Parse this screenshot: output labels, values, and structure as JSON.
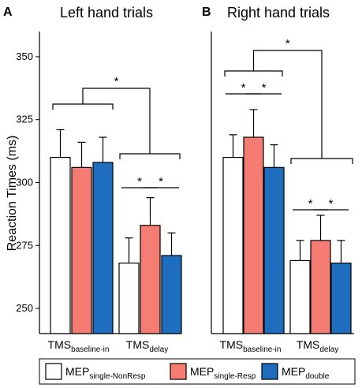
{
  "chart_data": [
    {
      "type": "bar",
      "panel_letter": "A",
      "title": "Left hand trials",
      "ylabel": "Reaction Times (ms)",
      "ylim": [
        240,
        360
      ],
      "yticks": [
        250,
        275,
        300,
        325,
        350
      ],
      "categories": [
        {
          "main": "TMS",
          "sub": "baseline-in"
        },
        {
          "main": "TMS",
          "sub": "delay"
        }
      ],
      "series": [
        {
          "name": "MEP single-NonResp",
          "values": [
            310,
            268
          ],
          "errors": [
            11,
            10
          ]
        },
        {
          "name": "MEP single-Resp",
          "values": [
            306,
            283
          ],
          "errors": [
            10,
            11
          ]
        },
        {
          "name": "MEP double",
          "values": [
            308,
            271
          ],
          "errors": [
            10,
            9
          ]
        }
      ],
      "annotations": [
        {
          "type": "pair",
          "category": 1,
          "from": 0,
          "to": 1,
          "label": "*"
        },
        {
          "type": "pair",
          "category": 1,
          "from": 1,
          "to": 2,
          "label": "*"
        },
        {
          "type": "groups",
          "label": "*"
        }
      ]
    },
    {
      "type": "bar",
      "panel_letter": "B",
      "title": "Right hand trials",
      "ylabel": "",
      "ylim": [
        240,
        360
      ],
      "yticks": [],
      "categories": [
        {
          "main": "TMS",
          "sub": "baseline-in"
        },
        {
          "main": "TMS",
          "sub": "delay"
        }
      ],
      "series": [
        {
          "name": "MEP single-NonResp",
          "values": [
            310,
            269
          ],
          "errors": [
            9,
            8
          ]
        },
        {
          "name": "MEP single-Resp",
          "values": [
            318,
            277
          ],
          "errors": [
            11,
            10
          ]
        },
        {
          "name": "MEP double",
          "values": [
            306,
            268
          ],
          "errors": [
            9,
            9
          ]
        }
      ],
      "annotations": [
        {
          "type": "pair",
          "category": 0,
          "from": 0,
          "to": 1,
          "label": "*"
        },
        {
          "type": "pair",
          "category": 0,
          "from": 1,
          "to": 2,
          "label": "*"
        },
        {
          "type": "pair",
          "category": 1,
          "from": 0,
          "to": 1,
          "label": "*"
        },
        {
          "type": "pair",
          "category": 1,
          "from": 1,
          "to": 2,
          "label": "*"
        },
        {
          "type": "groups",
          "label": "*"
        }
      ]
    }
  ],
  "legend": {
    "placement": "bottom",
    "items": [
      {
        "main": "MEP",
        "sub": "single-NonResp",
        "color": "#ffffff"
      },
      {
        "main": "MEP",
        "sub": "single-Resp",
        "color": "#f47c72"
      },
      {
        "main": "MEP",
        "sub": "double",
        "color": "#1f6dbf"
      }
    ]
  },
  "colors": {
    "series": [
      "#ffffff",
      "#f47c72",
      "#1f6dbf"
    ],
    "axis": "#000000",
    "bar_stroke": "#000000"
  }
}
